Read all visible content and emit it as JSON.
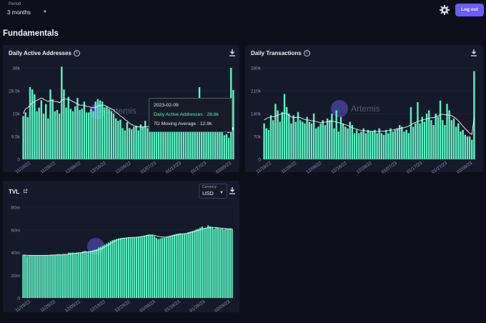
{
  "header": {
    "period_label": "Period",
    "period_value": "3 months",
    "logout_label": "Log out"
  },
  "page": {
    "title": "Fundamentals"
  },
  "colors": {
    "accent": "#6b5cff",
    "bar": "#5ef2c4",
    "background": "#0c0f1a",
    "card": "#151a2a"
  },
  "icons": {
    "settings": "gear-icon",
    "download": "download-icon",
    "info": "info-icon",
    "external": "external-link-icon"
  },
  "watermark": "Artemis",
  "cards": {
    "daa": {
      "title": "Daily Active Addresses",
      "yticks": [
        "38k",
        "28.5k",
        "19k",
        "9.5k",
        "0"
      ],
      "xticks": [
        "11/18/22",
        "11/28/22",
        "12/08/22",
        "12/18/22",
        "12/28/22",
        "01/07/23",
        "01/17/23",
        "01/27/23",
        "02/09/23"
      ],
      "tooltip": {
        "date": "2023-02-09",
        "series": "Daily Active Addresses : 28.8k",
        "ma": "7D Moving Average : 12.9k"
      }
    },
    "tx": {
      "title": "Daily Transactions",
      "yticks": [
        "280k",
        "210k",
        "140k",
        "70k",
        "0"
      ],
      "xticks": [
        "11/18/22",
        "11/28/22",
        "12/08/22",
        "12/18/22",
        "12/28/22",
        "01/07/23",
        "01/17/23",
        "01/27/23",
        "02/08/23"
      ]
    },
    "tvl": {
      "title": "TVL",
      "currency_label": "Currency",
      "currency_value": "USD",
      "yticks": [
        "80m",
        "60m",
        "40m",
        "20m",
        "0"
      ],
      "xticks": [
        "11/19/22",
        "11/29/22",
        "12/09/22",
        "12/19/22",
        "12/29/22",
        "01/08/23",
        "01/18/23",
        "01/28/23",
        "02/09/23"
      ]
    }
  },
  "chart_data": [
    {
      "type": "bar",
      "title": "Daily Active Addresses",
      "ylim": [
        0,
        38000
      ],
      "series": [
        {
          "name": "Daily Active Addresses",
          "values": [
            18000,
            19500,
            17500,
            30000,
            29000,
            27000,
            20000,
            21500,
            24500,
            19000,
            23000,
            17000,
            29000,
            25000,
            20000,
            20500,
            19000,
            38500,
            29000,
            21500,
            26000,
            21000,
            20000,
            22000,
            25500,
            20500,
            21000,
            24000,
            19500,
            19500,
            21000,
            20000,
            24000,
            25000,
            24500,
            24000,
            21500,
            22000,
            21000,
            20000,
            19000,
            17000,
            16000,
            16500,
            13000,
            12000,
            15500,
            13000,
            12500,
            13500,
            14000,
            12000,
            14500,
            13500,
            16000,
            13000,
            14500,
            19000,
            18000,
            21000,
            17500,
            17500,
            17000,
            20000,
            16500,
            14500,
            15500,
            20500,
            13000,
            13000,
            13500,
            13500,
            12500,
            14000,
            12500,
            13500,
            16500,
            22000,
            30000,
            12500,
            13000,
            17500,
            14000,
            13000,
            12500,
            13500,
            11500,
            12000,
            12500,
            10000,
            10500,
            9000,
            38000,
            28800
          ]
        },
        {
          "name": "7D Moving Average",
          "values": [
            19000,
            21000,
            21500,
            22500,
            23500,
            24000,
            24500,
            25000,
            25500,
            25000,
            24500,
            24000,
            24500,
            24500,
            24000,
            24000,
            23500,
            24500,
            25000,
            25000,
            25000,
            24500,
            24000,
            23500,
            23000,
            22500,
            22500,
            22500,
            22000,
            22000,
            21500,
            21500,
            21500,
            22000,
            22500,
            22500,
            22500,
            22000,
            21500,
            21000,
            20500,
            19500,
            19000,
            18000,
            17500,
            16500,
            16000,
            15000,
            14500,
            14000,
            13500,
            13500,
            13500,
            13500,
            13500,
            13500,
            14000,
            14500,
            15000,
            16000,
            16500,
            17000,
            17000,
            17500,
            17500,
            17000,
            16500,
            16500,
            16000,
            15500,
            15000,
            14500,
            14000,
            14000,
            13500,
            13500,
            14000,
            14500,
            15500,
            15500,
            15500,
            15000,
            14500,
            14500,
            14000,
            13500,
            13000,
            12500,
            12500,
            12000,
            11500,
            11000,
            12000,
            12900
          ]
        }
      ]
    },
    {
      "type": "bar",
      "title": "Daily Transactions",
      "ylim": [
        0,
        280000
      ],
      "series": [
        {
          "name": "Daily Transactions",
          "values": [
            110000,
            95000,
            90000,
            135000,
            120000,
            170000,
            150000,
            115000,
            145000,
            200000,
            160000,
            140000,
            110000,
            135000,
            115000,
            145000,
            120000,
            115000,
            110000,
            130000,
            115000,
            110000,
            140000,
            95000,
            100000,
            110000,
            120000,
            105000,
            125000,
            120000,
            140000,
            95000,
            150000,
            85000,
            130000,
            110000,
            100000,
            95000,
            115000,
            105000,
            80000,
            90000,
            80000,
            85000,
            95000,
            80000,
            90000,
            85000,
            85000,
            90000,
            80000,
            95000,
            80000,
            75000,
            90000,
            80000,
            95000,
            85000,
            90000,
            95000,
            105000,
            100000,
            85000,
            90000,
            80000,
            160000,
            100000,
            110000,
            175000,
            110000,
            130000,
            115000,
            140000,
            150000,
            120000,
            105000,
            140000,
            130000,
            180000,
            120000,
            105000,
            170000,
            150000,
            120000,
            125000,
            100000,
            110000,
            85000,
            90000,
            75000,
            70000,
            70000,
            60000,
            270000
          ]
        },
        {
          "name": "7D Moving Average",
          "values": [
            120000,
            125000,
            128000,
            130000,
            130000,
            132000,
            135000,
            138000,
            140000,
            142000,
            140000,
            135000,
            130000,
            128000,
            128000,
            130000,
            128000,
            125000,
            122000,
            120000,
            120000,
            118000,
            118000,
            116000,
            114000,
            113000,
            113000,
            114000,
            115000,
            116000,
            117000,
            116000,
            114000,
            112000,
            110000,
            108000,
            106000,
            104000,
            100000,
            97000,
            94000,
            92000,
            90000,
            89000,
            88000,
            87000,
            86000,
            86000,
            86000,
            85000,
            85000,
            86000,
            86000,
            86000,
            87000,
            88000,
            89000,
            90000,
            92000,
            93000,
            94000,
            96000,
            97000,
            99000,
            102000,
            106000,
            110000,
            113000,
            116000,
            118000,
            120000,
            122000,
            124000,
            126000,
            127000,
            128000,
            130000,
            133000,
            136000,
            138000,
            137000,
            136000,
            135000,
            134000,
            130000,
            125000,
            118000,
            110000,
            102000,
            94000,
            87000,
            80000,
            76000,
            130000
          ]
        }
      ]
    },
    {
      "type": "bar",
      "title": "TVL",
      "ylim": [
        0,
        80000000
      ],
      "series": [
        {
          "name": "TVL",
          "values": [
            38000000,
            37500000,
            37000000,
            37800000,
            37500000,
            37700000,
            37400000,
            37600000,
            37800000,
            37500000,
            37600000,
            37700000,
            37600000,
            37800000,
            38000000,
            37900000,
            38000000,
            38500000,
            38600000,
            38400000,
            38600000,
            38700000,
            38700000,
            40000000,
            39800000,
            40000000,
            39800000,
            40200000,
            40100000,
            40200000,
            41000000,
            41500000,
            41000000,
            41200000,
            41500000,
            42000000,
            42500000,
            43000000,
            44500000,
            45000000,
            46000000,
            47000000,
            48000000,
            49000000,
            50000000,
            51000000,
            51500000,
            52000000,
            52500000,
            52800000,
            53000000,
            53000000,
            53200000,
            53200000,
            53300000,
            53500000,
            53500000,
            53800000,
            54000000,
            54300000,
            54600000,
            55000000,
            55500000,
            56000000,
            55800000,
            55500000,
            54500000,
            53000000,
            52000000,
            52500000,
            53000000,
            53200000,
            53500000,
            54500000,
            55000000,
            55500000,
            56000000,
            56500000,
            56800000,
            57000000,
            56500000,
            56500000,
            57000000,
            58000000,
            58500000,
            59000000,
            59500000,
            60500000,
            61000000,
            62000000,
            63000000,
            61500000,
            62000000,
            64000000,
            63000000,
            62500000,
            61000000,
            62500000,
            62000000,
            61000000,
            61500000,
            60500000,
            61000000,
            60800000,
            61200000,
            61000000
          ]
        },
        {
          "name": "7D Moving Average",
          "values": [
            38000000,
            37800000,
            37600000,
            37600000,
            37600000,
            37600000,
            37600000,
            37600000,
            37600000,
            37600000,
            37600000,
            37600000,
            37700000,
            37700000,
            37800000,
            37800000,
            37900000,
            38000000,
            38100000,
            38200000,
            38300000,
            38400000,
            38500000,
            38700000,
            38900000,
            39100000,
            39300000,
            39500000,
            39700000,
            39900000,
            40100000,
            40300000,
            40500000,
            40700000,
            40900000,
            41200000,
            41600000,
            42000000,
            42600000,
            43200000,
            44000000,
            45000000,
            46000000,
            47000000,
            48000000,
            49000000,
            50000000,
            51000000,
            51600000,
            52100000,
            52500000,
            52800000,
            53000000,
            53200000,
            53300000,
            53400000,
            53500000,
            53600000,
            53800000,
            54000000,
            54300000,
            54600000,
            55000000,
            55300000,
            55500000,
            55500000,
            55200000,
            54800000,
            54300000,
            54000000,
            53800000,
            53700000,
            53800000,
            54000000,
            54300000,
            54700000,
            55100000,
            55500000,
            55900000,
            56200000,
            56500000,
            56700000,
            56900000,
            57200000,
            57600000,
            58000000,
            58500000,
            59000000,
            59600000,
            60200000,
            60800000,
            61200000,
            61600000,
            62000000,
            62200000,
            62300000,
            62200000,
            62000000,
            61900000,
            61700000,
            61500000,
            61300000,
            61100000,
            61000000,
            61000000,
            61000000
          ]
        }
      ]
    }
  ]
}
